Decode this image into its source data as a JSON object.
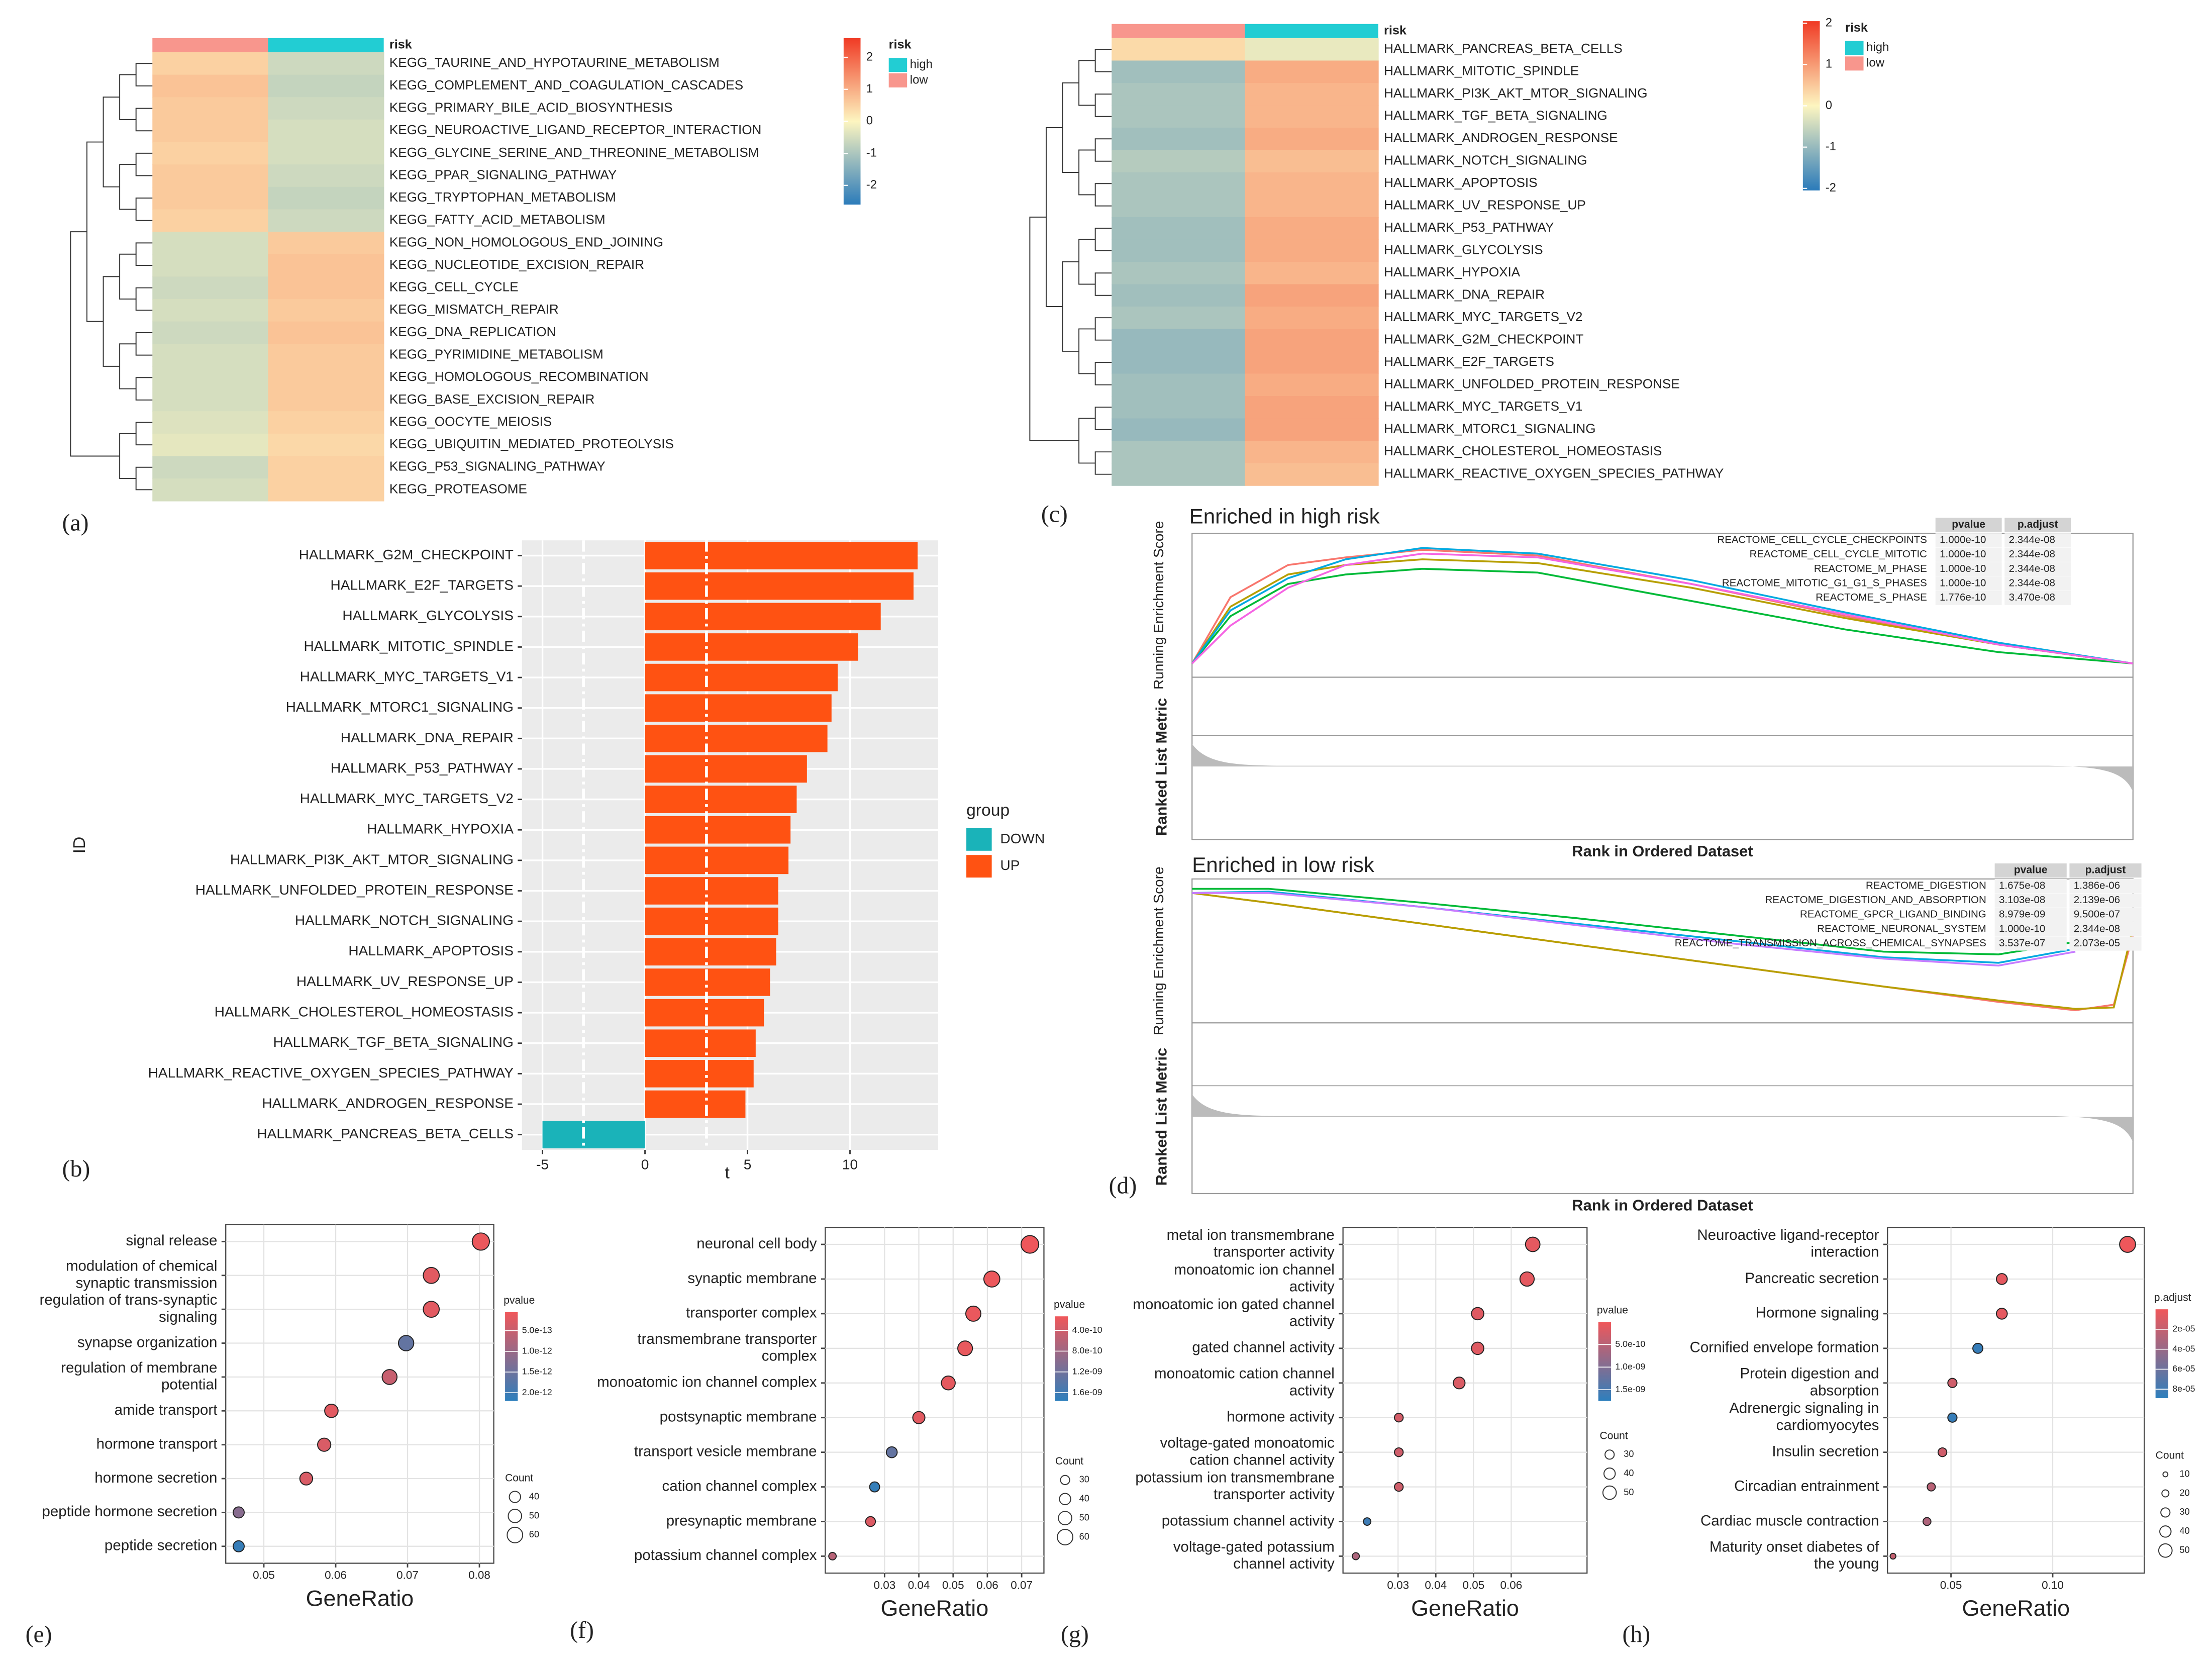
{
  "chart_data": [
    {
      "type": "heatmap",
      "label": "(a)",
      "annotation_title": "risk",
      "legend_title": "risk",
      "groups": [
        {
          "name": "low",
          "color": "#f8968d"
        },
        {
          "name": "high",
          "color": "#22cdd3"
        }
      ],
      "legend_order": [
        1,
        0
      ],
      "rows": [
        "KEGG_TAURINE_AND_HYPOTAURINE_METABOLISM",
        "KEGG_COMPLEMENT_AND_COAGULATION_CASCADES",
        "KEGG_PRIMARY_BILE_ACID_BIOSYNTHESIS",
        "KEGG_NEUROACTIVE_LIGAND_RECEPTOR_INTERACTION",
        "KEGG_GLYCINE_SERINE_AND_THREONINE_METABOLISM",
        "KEGG_PPAR_SIGNALING_PATHWAY",
        "KEGG_TRYPTOPHAN_METABOLISM",
        "KEGG_FATTY_ACID_METABOLISM",
        "KEGG_NON_HOMOLOGOUS_END_JOINING",
        "KEGG_NUCLEOTIDE_EXCISION_REPAIR",
        "KEGG_CELL_CYCLE",
        "KEGG_MISMATCH_REPAIR",
        "KEGG_DNA_REPLICATION",
        "KEGG_PYRIMIDINE_METABOLISM",
        "KEGG_HOMOLOGOUS_RECOMBINATION",
        "KEGG_BASE_EXCISION_REPAIR",
        "KEGG_OOCYTE_MEIOSIS",
        "KEGG_UBIQUITIN_MEDIATED_PROTEOLYSIS",
        "KEGG_P53_SIGNALING_PATHWAY",
        "KEGG_PROTEASOME"
      ],
      "values": [
        [
          0.5,
          -0.6
        ],
        [
          0.7,
          -0.7
        ],
        [
          0.6,
          -0.6
        ],
        [
          0.6,
          -0.5
        ],
        [
          0.5,
          -0.5
        ],
        [
          0.6,
          -0.6
        ],
        [
          0.6,
          -0.7
        ],
        [
          0.5,
          -0.6
        ],
        [
          -0.5,
          0.6
        ],
        [
          -0.5,
          0.7
        ],
        [
          -0.6,
          0.7
        ],
        [
          -0.5,
          0.6
        ],
        [
          -0.6,
          0.7
        ],
        [
          -0.5,
          0.6
        ],
        [
          -0.5,
          0.6
        ],
        [
          -0.5,
          0.6
        ],
        [
          -0.4,
          0.5
        ],
        [
          -0.3,
          0.4
        ],
        [
          -0.6,
          0.5
        ],
        [
          -0.5,
          0.5
        ]
      ],
      "color_scale": [
        "#2b7bba",
        "#fdf5c0",
        "#f03a24"
      ],
      "clim": [
        -2.6,
        2.6
      ],
      "cticks": [
        -2,
        -1,
        0,
        1,
        2
      ]
    },
    {
      "type": "bar",
      "label": "(b)",
      "xlabel": "t",
      "ylabel": "ID",
      "legend_title": "group",
      "groups": [
        {
          "name": "DOWN",
          "color": "#1ab3b9"
        },
        {
          "name": "UP",
          "color": "#ff5212"
        }
      ],
      "categories": [
        "HALLMARK_G2M_CHECKPOINT",
        "HALLMARK_E2F_TARGETS",
        "HALLMARK_GLYCOLYSIS",
        "HALLMARK_MITOTIC_SPINDLE",
        "HALLMARK_MYC_TARGETS_V1",
        "HALLMARK_MTORC1_SIGNALING",
        "HALLMARK_DNA_REPAIR",
        "HALLMARK_P53_PATHWAY",
        "HALLMARK_MYC_TARGETS_V2",
        "HALLMARK_HYPOXIA",
        "HALLMARK_PI3K_AKT_MTOR_SIGNALING",
        "HALLMARK_UNFOLDED_PROTEIN_RESPONSE",
        "HALLMARK_NOTCH_SIGNALING",
        "HALLMARK_APOPTOSIS",
        "HALLMARK_UV_RESPONSE_UP",
        "HALLMARK_CHOLESTEROL_HOMEOSTASIS",
        "HALLMARK_TGF_BETA_SIGNALING",
        "HALLMARK_REACTIVE_OXYGEN_SPECIES_PATHWAY",
        "HALLMARK_ANDROGEN_RESPONSE",
        "HALLMARK_PANCREAS_BETA_CELLS"
      ],
      "values": [
        13.3,
        13.1,
        11.5,
        10.4,
        9.4,
        9.1,
        8.9,
        7.9,
        7.4,
        7.1,
        7.0,
        6.5,
        6.5,
        6.4,
        6.1,
        5.8,
        5.4,
        5.3,
        4.9,
        -5.0
      ],
      "xlim": [
        -6,
        14.3
      ],
      "xticks": [
        -5,
        0,
        5,
        10
      ],
      "vlines": [
        -3,
        3
      ]
    },
    {
      "type": "heatmap",
      "label": "(c)",
      "annotation_title": "risk",
      "legend_title": "risk",
      "groups": [
        {
          "name": "low",
          "color": "#f8968d"
        },
        {
          "name": "high",
          "color": "#22cdd3"
        }
      ],
      "legend_order": [
        1,
        0
      ],
      "rows": [
        "HALLMARK_PANCREAS_BETA_CELLS",
        "HALLMARK_MITOTIC_SPINDLE",
        "HALLMARK_PI3K_AKT_MTOR_SIGNALING",
        "HALLMARK_TGF_BETA_SIGNALING",
        "HALLMARK_ANDROGEN_RESPONSE",
        "HALLMARK_NOTCH_SIGNALING",
        "HALLMARK_APOPTOSIS",
        "HALLMARK_UV_RESPONSE_UP",
        "HALLMARK_P53_PATHWAY",
        "HALLMARK_GLYCOLYSIS",
        "HALLMARK_HYPOXIA",
        "HALLMARK_DNA_REPAIR",
        "HALLMARK_MYC_TARGETS_V2",
        "HALLMARK_G2M_CHECKPOINT",
        "HALLMARK_E2F_TARGETS",
        "HALLMARK_UNFOLDED_PROTEIN_RESPONSE",
        "HALLMARK_MYC_TARGETS_V1",
        "HALLMARK_MTORC1_SIGNALING",
        "HALLMARK_CHOLESTEROL_HOMEOSTASIS",
        "HALLMARK_REACTIVE_OXYGEN_SPECIES_PATHWAY"
      ],
      "values": [
        [
          0.3,
          -0.2
        ],
        [
          -0.9,
          0.8
        ],
        [
          -0.8,
          0.7
        ],
        [
          -0.8,
          0.7
        ],
        [
          -0.9,
          0.8
        ],
        [
          -0.7,
          0.6
        ],
        [
          -0.8,
          0.7
        ],
        [
          -0.8,
          0.7
        ],
        [
          -0.9,
          0.8
        ],
        [
          -0.9,
          0.8
        ],
        [
          -0.8,
          0.7
        ],
        [
          -0.9,
          0.9
        ],
        [
          -0.8,
          0.8
        ],
        [
          -1.0,
          0.9
        ],
        [
          -1.0,
          0.9
        ],
        [
          -0.9,
          0.8
        ],
        [
          -0.9,
          0.9
        ],
        [
          -1.0,
          0.9
        ],
        [
          -0.8,
          0.7
        ],
        [
          -0.8,
          0.6
        ]
      ],
      "color_scale": [
        "#2b7bba",
        "#fdf5c0",
        "#f03a24"
      ],
      "clim": [
        -2.05,
        2.05
      ],
      "cticks": [
        -2,
        -1,
        0,
        1,
        2
      ]
    },
    {
      "type": "line",
      "title": "Enriched in high risk",
      "ylabel": "Running Enrichment Score",
      "ylabel2": "Ranked List Metric",
      "xlabel": "Rank in Ordered Dataset",
      "x": [
        0,
        1000,
        2500,
        4000,
        6000,
        9000,
        13000,
        17000,
        21000,
        24500
      ],
      "xlim": [
        0,
        24500
      ],
      "ylim": [
        -0.05,
        0.65
      ],
      "series": [
        {
          "name": "REACTOME_CELL_CYCLE_CHECKPOINTS",
          "color": "#f8766d",
          "values": [
            0,
            0.35,
            0.52,
            0.56,
            0.6,
            0.57,
            0.42,
            0.25,
            0.1,
            0
          ]
        },
        {
          "name": "REACTOME_CELL_CYCLE_MITOTIC",
          "color": "#b79f00",
          "values": [
            0,
            0.3,
            0.47,
            0.52,
            0.55,
            0.53,
            0.4,
            0.24,
            0.1,
            0
          ]
        },
        {
          "name": "REACTOME_M_PHASE",
          "color": "#00ba38",
          "values": [
            0,
            0.25,
            0.42,
            0.47,
            0.5,
            0.48,
            0.33,
            0.18,
            0.06,
            0
          ]
        },
        {
          "name": "REACTOME_MITOTIC_G1_G1_S_PHASES",
          "color": "#00a9e0",
          "values": [
            0,
            0.28,
            0.45,
            0.55,
            0.61,
            0.58,
            0.44,
            0.27,
            0.11,
            0
          ]
        },
        {
          "name": "REACTOME_S_PHASE",
          "color": "#f564e3",
          "values": [
            0,
            0.2,
            0.4,
            0.52,
            0.58,
            0.56,
            0.42,
            0.26,
            0.1,
            0
          ]
        }
      ],
      "table": {
        "header": [
          "pvalue",
          "p.adjust"
        ],
        "rows": [
          [
            "1.000e-10",
            "2.344e-08"
          ],
          [
            "1.000e-10",
            "2.344e-08"
          ],
          [
            "1.000e-10",
            "2.344e-08"
          ],
          [
            "1.000e-10",
            "2.344e-08"
          ],
          [
            "1.776e-10",
            "3.470e-08"
          ]
        ]
      }
    },
    {
      "type": "line",
      "label": "(d)",
      "title": "Enriched in low risk",
      "ylabel": "Running Enrichment Score",
      "ylabel2": "Ranked List Metric",
      "xlabel": "Rank in Ordered Dataset",
      "x": [
        0,
        2000,
        6000,
        10000,
        14000,
        18000,
        21000,
        23000,
        24000,
        24500
      ],
      "xlim": [
        0,
        24500
      ],
      "ylim": [
        -0.9,
        0.05
      ],
      "series": [
        {
          "name": "REACTOME_DIGESTION",
          "color": "#f8766d",
          "values": [
            0,
            -0.07,
            -0.22,
            -0.37,
            -0.52,
            -0.67,
            -0.78,
            -0.84,
            -0.8,
            -0.3
          ]
        },
        {
          "name": "REACTOME_DIGESTION_AND_ABSORPTION",
          "color": "#b79f00",
          "values": [
            0,
            -0.07,
            -0.22,
            -0.37,
            -0.52,
            -0.67,
            -0.77,
            -0.83,
            -0.82,
            -0.25
          ]
        },
        {
          "name": "REACTOME_GPCR_LIGAND_BINDING",
          "color": "#00ba38",
          "values": [
            0.03,
            0.03,
            -0.07,
            -0.18,
            -0.3,
            -0.42,
            -0.44,
            -0.35,
            null,
            null
          ]
        },
        {
          "name": "REACTOME_NEURONAL_SYSTEM",
          "color": "#00a9e0",
          "values": [
            0,
            0.01,
            -0.1,
            -0.22,
            -0.34,
            -0.46,
            -0.5,
            -0.4,
            null,
            null
          ]
        },
        {
          "name": "REACTOME_TRANSMISSION_ACROSS_CHEMICAL_SYNAPSES",
          "color": "#c77cff",
          "values": [
            0,
            0,
            -0.1,
            -0.23,
            -0.36,
            -0.47,
            -0.52,
            -0.42,
            null,
            null
          ]
        }
      ],
      "table": {
        "header": [
          "pvalue",
          "p.adjust"
        ],
        "rows": [
          [
            "1.675e-08",
            "1.386e-06"
          ],
          [
            "3.103e-08",
            "2.139e-06"
          ],
          [
            "8.979e-09",
            "9.500e-07"
          ],
          [
            "1.000e-10",
            "2.344e-08"
          ],
          [
            "3.537e-07",
            "2.073e-05"
          ]
        ]
      }
    },
    {
      "type": "dot",
      "label": "(e)",
      "xlabel": "GeneRatio",
      "color_title": "pvalue",
      "size_title": "Count",
      "categories": [
        [
          "signal release"
        ],
        [
          "modulation of chemical",
          "synaptic transmission"
        ],
        [
          "regulation of trans-synaptic",
          "signaling"
        ],
        [
          "synapse organization"
        ],
        [
          "regulation of membrane",
          "potential"
        ],
        [
          "amide transport"
        ],
        [
          "hormone transport"
        ],
        [
          "hormone secretion"
        ],
        [
          "peptide hormone secretion"
        ],
        [
          "peptide secretion"
        ]
      ],
      "values": [
        0.0802,
        0.0733,
        0.0733,
        0.0698,
        0.0675,
        0.0594,
        0.0584,
        0.0559,
        0.0465,
        0.0465
      ],
      "sizes": [
        68,
        62,
        62,
        59,
        57,
        50,
        49,
        47,
        39,
        39
      ],
      "colors": [
        1e-13,
        2e-13,
        2e-13,
        1.6e-12,
        5e-13,
        2e-13,
        3e-13,
        3e-13,
        1.2e-12,
        2.1e-12
      ],
      "xlim": [
        0.0447,
        0.082
      ],
      "xticks": [
        0.05,
        0.06,
        0.07,
        0.08
      ],
      "color_scale": [
        "#f0575a",
        "#2d7fbd"
      ],
      "clim": [
        5e-14,
        2.2e-12
      ],
      "cticks": [
        {
          "value": 5e-13,
          "label": "5.0e-13"
        },
        {
          "value": 1e-12,
          "label": "1.0e-12"
        },
        {
          "value": 1.5e-12,
          "label": "1.5e-12"
        },
        {
          "value": 2e-12,
          "label": "2.0e-12"
        }
      ],
      "size_ticks": [
        40,
        50,
        60
      ]
    },
    {
      "type": "dot",
      "label": "(f)",
      "xlabel": "GeneRatio",
      "color_title": "pvalue",
      "size_title": "Count",
      "categories": [
        [
          "neuronal cell body"
        ],
        [
          "synaptic membrane"
        ],
        [
          "transporter complex"
        ],
        [
          "transmembrane transporter",
          "complex"
        ],
        [
          "monoatomic ion channel complex"
        ],
        [
          "postsynaptic membrane"
        ],
        [
          "transport vesicle membrane"
        ],
        [
          "cation channel complex"
        ],
        [
          "presynaptic membrane"
        ],
        [
          "potassium channel complex"
        ]
      ],
      "values": [
        0.0724,
        0.0613,
        0.0559,
        0.0535,
        0.0486,
        0.04,
        0.0321,
        0.0271,
        0.0259,
        0.0148
      ],
      "sizes": [
        70,
        62,
        58,
        56,
        52,
        44,
        38,
        34,
        33,
        22
      ],
      "colors": [
        1.5e-10,
        1.6e-10,
        1.8e-10,
        2e-10,
        2.2e-10,
        2.5e-10,
        1.3e-09,
        1.7e-09,
        3e-10,
        6e-10
      ],
      "xlim": [
        0.0127,
        0.0765
      ],
      "xticks": [
        0.03,
        0.04,
        0.05,
        0.06,
        0.07
      ],
      "color_scale": [
        "#f0575a",
        "#2d7fbd"
      ],
      "clim": [
        1.3e-10,
        1.76e-09
      ],
      "cticks": [
        {
          "value": 4e-10,
          "label": "4.0e-10"
        },
        {
          "value": 8e-10,
          "label": "8.0e-10"
        },
        {
          "value": 1.2e-09,
          "label": "1.2e-09"
        },
        {
          "value": 1.6e-09,
          "label": "1.6e-09"
        }
      ],
      "size_ticks": [
        30,
        40,
        50,
        60
      ]
    },
    {
      "type": "dot",
      "label": "(g)",
      "xlabel": "GeneRatio",
      "color_title": "pvalue",
      "size_title": "Count",
      "categories": [
        [
          "metal ion transmembrane",
          "transporter activity"
        ],
        [
          "monoatomic ion channel",
          "activity"
        ],
        [
          "monoatomic ion gated channel",
          "activity"
        ],
        [
          "gated channel activity"
        ],
        [
          "monoatomic cation channel",
          "activity"
        ],
        [
          "hormone activity"
        ],
        [
          "voltage-gated monoatomic",
          "cation channel activity"
        ],
        [
          "potassium ion transmembrane",
          "transporter activity"
        ],
        [
          "potassium channel activity"
        ],
        [
          "voltage-gated potassium",
          "channel activity"
        ]
      ],
      "values": [
        0.0657,
        0.0642,
        0.0511,
        0.0511,
        0.0462,
        0.0302,
        0.0302,
        0.0302,
        0.0218,
        0.0188
      ],
      "sizes": [
        55,
        54,
        45,
        45,
        42,
        28,
        28,
        28,
        22,
        20
      ],
      "colors": [
        1e-10,
        1e-10,
        1.5e-10,
        1.5e-10,
        2e-10,
        2.5e-10,
        3e-10,
        3e-10,
        1.6e-09,
        6e-10
      ],
      "xlim": [
        0.0154,
        0.0801
      ],
      "xticks": [
        0.03,
        0.04,
        0.05,
        0.06
      ],
      "color_scale": [
        "#f0575a",
        "#2d7fbd"
      ],
      "clim": [
        0,
        1.75e-09
      ],
      "cticks": [
        {
          "value": 5e-10,
          "label": "5.0e-10"
        },
        {
          "value": 1e-09,
          "label": "1.0e-09"
        },
        {
          "value": 1.5e-09,
          "label": "1.5e-09"
        }
      ],
      "size_ticks": [
        30,
        40,
        50
      ]
    },
    {
      "type": "dot",
      "label": "(h)",
      "xlabel": "GeneRatio",
      "color_title": "p.adjust",
      "size_title": "Count",
      "categories": [
        [
          "Neuroactive ligand-receptor",
          "interaction"
        ],
        [
          "Pancreatic secretion"
        ],
        [
          "Hormone signaling"
        ],
        [
          "Cornified envelope formation"
        ],
        [
          "Protein digestion and",
          "absorption"
        ],
        [
          "Adrenergic signaling in",
          "cardiomyocytes"
        ],
        [
          "Insulin secretion"
        ],
        [
          "Circadian entrainment"
        ],
        [
          "Cardiac muscle contraction"
        ],
        [
          "Maturity onset diabetes of",
          "the young"
        ]
      ],
      "values": [
        0.1368,
        0.075,
        0.075,
        0.0632,
        0.0507,
        0.0507,
        0.0458,
        0.0403,
        0.0382,
        0.0215
      ],
      "sizes": [
        62,
        38,
        38,
        34,
        30,
        30,
        28,
        25,
        24,
        14
      ],
      "colors": [
        1e-06,
        5e-06,
        5e-06,
        8.5e-05,
        1.5e-05,
        8.5e-05,
        1.5e-05,
        2.5e-05,
        3e-05,
        2e-05
      ],
      "xlim": [
        0.0188,
        0.145
      ],
      "xticks": [
        0.05,
        {
          "value": 0.1,
          "label": "0.10"
        }
      ],
      "color_scale": [
        "#f0575a",
        "#2d7fbd"
      ],
      "clim": [
        0,
        8.9e-05
      ],
      "cticks": [
        {
          "value": 2e-05,
          "label": "2e-05"
        },
        {
          "value": 4e-05,
          "label": "4e-05"
        },
        {
          "value": 6e-05,
          "label": "6e-05"
        },
        {
          "value": 8e-05,
          "label": "8e-05"
        }
      ],
      "size_ticks": [
        10,
        20,
        30,
        40,
        50
      ]
    }
  ]
}
